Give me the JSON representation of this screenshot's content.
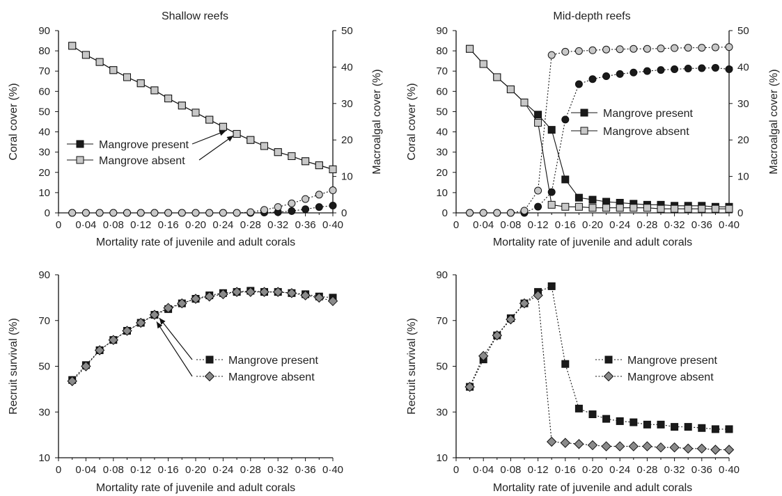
{
  "chart_data": [
    {
      "type": "line",
      "title": "Shallow reefs",
      "xlabel": "Mortality rate of juvenile and adult corals",
      "ylabel": "Coral cover (%)",
      "y2label": "Macroalgal cover (%)",
      "xlim": [
        0,
        0.4
      ],
      "ylim": [
        0,
        90
      ],
      "y2lim": [
        0,
        50
      ],
      "xticks": [
        "0",
        "0·04",
        "0·08",
        "0·12",
        "0·16",
        "0·20",
        "0·24",
        "0·28",
        "0·32",
        "0·36",
        "0·40"
      ],
      "yticks": [
        "0",
        "10",
        "20",
        "30",
        "40",
        "50",
        "60",
        "70",
        "80",
        "90"
      ],
      "y2ticks": [
        "0",
        "10",
        "20",
        "30",
        "40",
        "50"
      ],
      "x": [
        0.02,
        0.04,
        0.06,
        0.08,
        0.1,
        0.12,
        0.14,
        0.16,
        0.18,
        0.2,
        0.22,
        0.24,
        0.26,
        0.28,
        0.3,
        0.32,
        0.34,
        0.36,
        0.38,
        0.4
      ],
      "legend": [
        "Mangrove present",
        "Mangrove absent"
      ],
      "legend_position": "middle-left",
      "series": [
        {
          "name": "Mangrove present",
          "measure": "coral",
          "axis": "left",
          "line": "solid",
          "marker": "square",
          "fill": "#1a1a1a",
          "values": [
            82.5,
            78,
            74.5,
            70.5,
            67,
            64,
            60.5,
            56.5,
            53,
            49.5,
            46,
            42.5,
            39,
            36,
            33,
            30,
            28,
            25.5,
            23.5,
            21.5
          ]
        },
        {
          "name": "Mangrove absent",
          "measure": "coral",
          "axis": "left",
          "line": "solid",
          "marker": "square",
          "fill": "#c8c8c8",
          "values": [
            82.5,
            78,
            74.5,
            70.5,
            67,
            64,
            60.5,
            56.5,
            53,
            49.5,
            46,
            42.5,
            39,
            36,
            33,
            30,
            28,
            25.5,
            23.5,
            21.5
          ]
        },
        {
          "name": "Mangrove present",
          "measure": "macroalgae",
          "axis": "right",
          "line": "dotted",
          "marker": "circle",
          "fill": "#1a1a1a",
          "values": [
            0,
            0,
            0,
            0,
            0,
            0,
            0,
            0,
            0,
            0,
            0,
            0,
            0,
            0,
            0.1,
            0.2,
            0.5,
            1,
            1.6,
            2
          ]
        },
        {
          "name": "Mangrove absent",
          "measure": "macroalgae",
          "axis": "right",
          "line": "dotted",
          "marker": "circle",
          "fill": "#c8c8c8",
          "values": [
            0,
            0,
            0,
            0,
            0,
            0,
            0,
            0,
            0,
            0,
            0,
            0,
            0,
            0.2,
            0.8,
            1.6,
            2.6,
            3.8,
            5,
            6.2
          ]
        }
      ]
    },
    {
      "type": "line",
      "title": "Mid-depth reefs",
      "xlabel": "Mortality rate of juvenile and adult corals",
      "ylabel": "Coral cover (%)",
      "y2label": "Macroalgal cover (%)",
      "xlim": [
        0,
        0.4
      ],
      "ylim": [
        0,
        90
      ],
      "y2lim": [
        0,
        50
      ],
      "xticks": [
        "0",
        "0·04",
        "0·08",
        "0·12",
        "0·16",
        "0·20",
        "0·24",
        "0·28",
        "0·32",
        "0·36",
        "0·40"
      ],
      "yticks": [
        "0",
        "10",
        "20",
        "30",
        "40",
        "50",
        "60",
        "70",
        "80",
        "90"
      ],
      "y2ticks": [
        "0",
        "10",
        "20",
        "30",
        "40",
        "50"
      ],
      "x": [
        0.02,
        0.04,
        0.06,
        0.08,
        0.1,
        0.12,
        0.14,
        0.16,
        0.18,
        0.2,
        0.22,
        0.24,
        0.26,
        0.28,
        0.3,
        0.32,
        0.34,
        0.36,
        0.38,
        0.4
      ],
      "legend": [
        "Mangrove present",
        "Mangrove absent"
      ],
      "legend_position": "right",
      "series": [
        {
          "name": "Mangrove present",
          "measure": "coral",
          "axis": "left",
          "line": "solid",
          "marker": "square",
          "fill": "#1a1a1a",
          "values": [
            81,
            73.5,
            67,
            61,
            54.5,
            48.5,
            41,
            16.5,
            7.5,
            6.5,
            5.5,
            5,
            4.5,
            4,
            4,
            3.5,
            3.5,
            3.5,
            3,
            3
          ]
        },
        {
          "name": "Mangrove absent",
          "measure": "coral",
          "axis": "left",
          "line": "solid",
          "marker": "square",
          "fill": "#c8c8c8",
          "values": [
            81,
            73.5,
            67,
            61,
            54.5,
            44.5,
            4,
            3,
            3,
            2.5,
            2.5,
            2.5,
            2.5,
            2.5,
            2,
            2,
            2,
            2,
            2,
            2
          ]
        },
        {
          "name": "Mangrove present",
          "measure": "macroalgae",
          "axis": "right",
          "line": "dotted",
          "marker": "circle",
          "fill": "#1a1a1a",
          "values": [
            0,
            0,
            0,
            0,
            0,
            1.7,
            5.7,
            25.6,
            35.3,
            36.7,
            37.5,
            38.1,
            38.5,
            38.9,
            39.2,
            39.4,
            39.6,
            39.7,
            39.8,
            39.4
          ]
        },
        {
          "name": "Mangrove absent",
          "measure": "macroalgae",
          "axis": "right",
          "line": "dotted",
          "marker": "circle",
          "fill": "#c8c8c8",
          "values": [
            0,
            0,
            0,
            0,
            0.6,
            6.1,
            43.3,
            44.2,
            44.4,
            44.6,
            44.8,
            44.9,
            45,
            45,
            45.1,
            45.2,
            45.3,
            45.3,
            45.4,
            45.5
          ]
        }
      ]
    },
    {
      "type": "line",
      "title": "",
      "xlabel": "Mortality rate of juvenile and adult corals",
      "ylabel": "Recruit survival (%)",
      "xlim": [
        0,
        0.4
      ],
      "ylim": [
        10,
        90
      ],
      "xticks": [
        "0",
        "0·04",
        "0·08",
        "0·12",
        "0·16",
        "0·20",
        "0·24",
        "0·28",
        "0·32",
        "0·36",
        "0·40"
      ],
      "yticks": [
        "10",
        "30",
        "50",
        "70",
        "90"
      ],
      "x": [
        0.02,
        0.04,
        0.06,
        0.08,
        0.1,
        0.12,
        0.14,
        0.16,
        0.18,
        0.2,
        0.22,
        0.24,
        0.26,
        0.28,
        0.3,
        0.32,
        0.34,
        0.36,
        0.38,
        0.4
      ],
      "legend": [
        "Mangrove present",
        "Mangrove absent"
      ],
      "legend_position": "middle-right",
      "series": [
        {
          "name": "Mangrove present",
          "line": "dotted",
          "marker": "square",
          "fill": "#1a1a1a",
          "values": [
            44,
            50.5,
            57,
            61.5,
            65.5,
            69,
            72.5,
            75,
            77.5,
            79.5,
            81,
            82,
            82.5,
            83,
            82.5,
            82.5,
            82,
            81.5,
            80.5,
            80
          ]
        },
        {
          "name": "Mangrove absent",
          "line": "dotted",
          "marker": "diamond",
          "fill": "#8a8a8a",
          "values": [
            43.5,
            50,
            57,
            61.5,
            65.5,
            69,
            72.5,
            75.5,
            77.5,
            79.5,
            80.5,
            81.5,
            82.5,
            82.5,
            82.5,
            82.5,
            82,
            81,
            80,
            78.5
          ]
        }
      ]
    },
    {
      "type": "line",
      "title": "",
      "xlabel": "Mortality rate of juvenile and adult corals",
      "ylabel": "Recruit survival (%)",
      "xlim": [
        0,
        0.4
      ],
      "ylim": [
        10,
        90
      ],
      "xticks": [
        "0",
        "0·04",
        "0·08",
        "0·12",
        "0·16",
        "0·20",
        "0·24",
        "0·28",
        "0·32",
        "0·36",
        "0·40"
      ],
      "yticks": [
        "10",
        "30",
        "50",
        "70",
        "90"
      ],
      "x": [
        0.02,
        0.04,
        0.06,
        0.08,
        0.1,
        0.12,
        0.14,
        0.16,
        0.18,
        0.2,
        0.22,
        0.24,
        0.26,
        0.28,
        0.3,
        0.32,
        0.34,
        0.36,
        0.38,
        0.4
      ],
      "legend": [
        "Mangrove present",
        "Mangrove absent"
      ],
      "legend_position": "middle-right",
      "series": [
        {
          "name": "Mangrove present",
          "line": "dotted",
          "marker": "square",
          "fill": "#1a1a1a",
          "values": [
            41,
            53,
            63.5,
            71,
            77.5,
            82.5,
            85,
            51,
            31.5,
            29,
            27,
            26,
            25.5,
            24.5,
            24.5,
            23.5,
            23.5,
            23,
            22.5,
            22.5
          ]
        },
        {
          "name": "Mangrove absent",
          "line": "dotted",
          "marker": "diamond",
          "fill": "#8a8a8a",
          "values": [
            41,
            54.5,
            63.5,
            70.5,
            77.5,
            81,
            17,
            16.5,
            16,
            15.5,
            15,
            15,
            15,
            15,
            14.5,
            14.5,
            14,
            14,
            13.5,
            13.5
          ]
        }
      ]
    }
  ]
}
